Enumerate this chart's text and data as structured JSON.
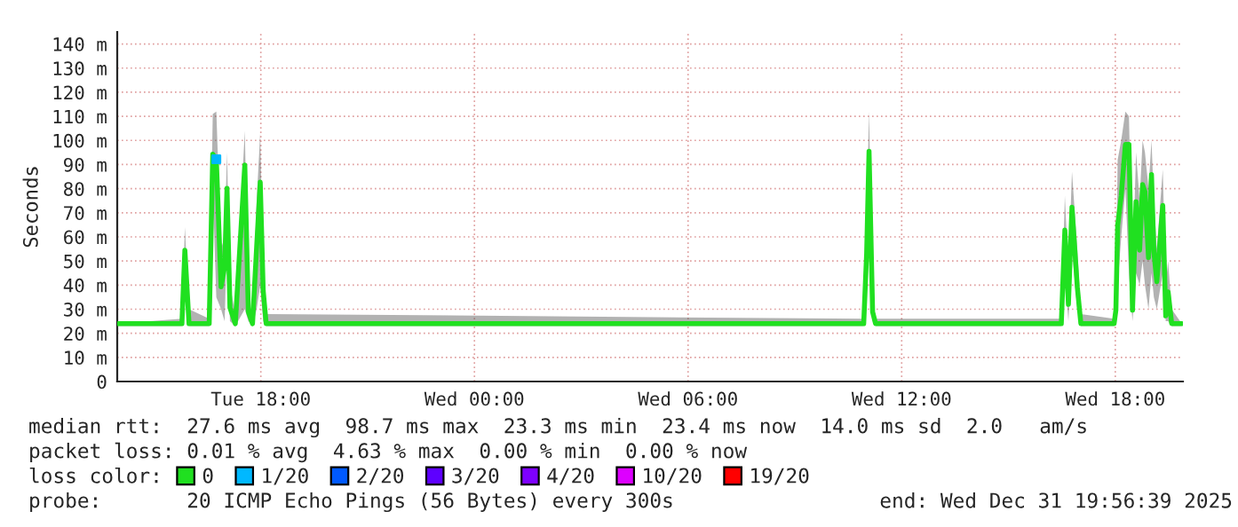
{
  "chart_data": {
    "type": "line",
    "ylabel": "Seconds",
    "xlim": [
      "2025-12-30T13:58",
      "2025-12-31T19:54"
    ],
    "xticks": [
      {
        "value": "2025-12-30T18:00",
        "label": "Tue 18:00"
      },
      {
        "value": "2025-12-31T00:00",
        "label": "Wed 00:00"
      },
      {
        "value": "2025-12-31T06:00",
        "label": "Wed 06:00"
      },
      {
        "value": "2025-12-31T12:00",
        "label": "Wed 12:00"
      },
      {
        "value": "2025-12-31T18:00",
        "label": "Wed 18:00"
      }
    ],
    "ylim": [
      0,
      145
    ],
    "yticks": [
      0,
      {
        "value": 10,
        "label": "10 m"
      },
      {
        "value": 20,
        "label": "20 m"
      },
      {
        "value": 30,
        "label": "30 m"
      },
      {
        "value": 40,
        "label": "40 m"
      },
      {
        "value": 50,
        "label": "50 m"
      },
      {
        "value": 60,
        "label": "60 m"
      },
      {
        "value": 70,
        "label": "70 m"
      },
      {
        "value": 80,
        "label": "80 m"
      },
      {
        "value": 90,
        "label": "90 m"
      },
      {
        "value": 100,
        "label": "100 m"
      },
      {
        "value": 110,
        "label": "110 m"
      },
      {
        "value": 120,
        "label": "120 m"
      },
      {
        "value": 130,
        "label": "130 m"
      },
      {
        "value": 140,
        "label": "140 m"
      }
    ],
    "grid": true,
    "legend": "bottom",
    "legend_title": "loss color:",
    "series": [
      {
        "name": "0",
        "color": "#20e020",
        "x": [
          "2025-12-30T14:00",
          "2025-12-30T15:47",
          "2025-12-30T15:52",
          "2025-12-30T15:59",
          "2025-12-30T16:33",
          "2025-12-30T16:39",
          "2025-12-30T16:45",
          "2025-12-30T16:53",
          "2025-12-30T16:59",
          "2025-12-30T17:03",
          "2025-12-30T17:08",
          "2025-12-30T17:17",
          "2025-12-30T17:33",
          "2025-12-30T17:39",
          "2025-12-30T17:46",
          "2025-12-30T17:53",
          "2025-12-30T17:59",
          "2025-12-30T18:04",
          "2025-12-30T18:09",
          "2025-12-31T10:56",
          "2025-12-31T11:01",
          "2025-12-31T11:05",
          "2025-12-31T11:11",
          "2025-12-31T11:16",
          "2025-12-31T16:29",
          "2025-12-31T16:35",
          "2025-12-31T16:41",
          "2025-12-31T16:47",
          "2025-12-31T16:56",
          "2025-12-31T17:02",
          "2025-12-31T17:58",
          "2025-12-31T18:01",
          "2025-12-31T18:04",
          "2025-12-31T18:10",
          "2025-12-31T18:17",
          "2025-12-31T18:23",
          "2025-12-31T18:29",
          "2025-12-31T18:35",
          "2025-12-31T18:41",
          "2025-12-31T18:46",
          "2025-12-31T18:50",
          "2025-12-31T18:56",
          "2025-12-31T19:01",
          "2025-12-31T19:05",
          "2025-12-31T19:10",
          "2025-12-31T19:20",
          "2025-12-31T19:25",
          "2025-12-31T19:29",
          "2025-12-31T19:35",
          "2025-12-31T19:52"
        ],
        "values": [
          24,
          24,
          54.5,
          24,
          24,
          94.3,
          92.2,
          39.3,
          47.6,
          80.1,
          30.6,
          24,
          89.8,
          28.9,
          24,
          55.9,
          82.7,
          37.7,
          24,
          24,
          53.3,
          95.5,
          28.9,
          24,
          24,
          62.8,
          32,
          72.3,
          39.1,
          24,
          24,
          29.6,
          64.7,
          77,
          98.3,
          98.3,
          29.6,
          74.6,
          54.5,
          81.7,
          78.7,
          51.4,
          85.8,
          53.8,
          41.4,
          73,
          27.2,
          37.2,
          24,
          24
        ],
        "lower": [
          23,
          23,
          45,
          23,
          23,
          80,
          35,
          30,
          25,
          60,
          25,
          23,
          30,
          25,
          23,
          30,
          40,
          25,
          23,
          23,
          40,
          80,
          25,
          23,
          23,
          45,
          25,
          55,
          30,
          23,
          23,
          25,
          40,
          60,
          80,
          45,
          25,
          45,
          40,
          50,
          40,
          30,
          45,
          35,
          30,
          45,
          25,
          25,
          23,
          23
        ],
        "upper": [
          24,
          26,
          64,
          30,
          26,
          111,
          112,
          55,
          60,
          95,
          40,
          28,
          104,
          35,
          26,
          75,
          103,
          45,
          28,
          26,
          70,
          112,
          35,
          26,
          26,
          77,
          45,
          87,
          55,
          28,
          26,
          40,
          92,
          100,
          112,
          110,
          45,
          95,
          75,
          100,
          95,
          80,
          100,
          75,
          55,
          88,
          40,
          50,
          30,
          24
        ]
      },
      {
        "name": "1/20",
        "color": "#00b8ff",
        "type": "scatter",
        "x": [
          "2025-12-30T16:45"
        ],
        "values": [
          92.2
        ]
      },
      {
        "name": "2/20",
        "color": "#0059ff",
        "type": "scatter"
      },
      {
        "name": "3/20",
        "color": "#5e00ff",
        "type": "scatter"
      },
      {
        "name": "4/20",
        "color": "#7e00ff",
        "type": "scatter"
      },
      {
        "name": "10/20",
        "color": "#dd00ff",
        "type": "scatter"
      },
      {
        "name": "19/20",
        "color": "#ff0000",
        "type": "scatter"
      }
    ],
    "annotations": [
      "median rtt:  27.6 ms avg  98.7 ms max  23.3 ms min  23.4 ms now  14.0 ms sd  2.0   am/s",
      "packet loss: 0.01 % avg  4.63 % max  0.00 % min  0.00 % now",
      "probe:       20 ICMP Echo Pings (56 Bytes) every 300s",
      "end: Wed Dec 31 19:56:39 2025"
    ]
  }
}
